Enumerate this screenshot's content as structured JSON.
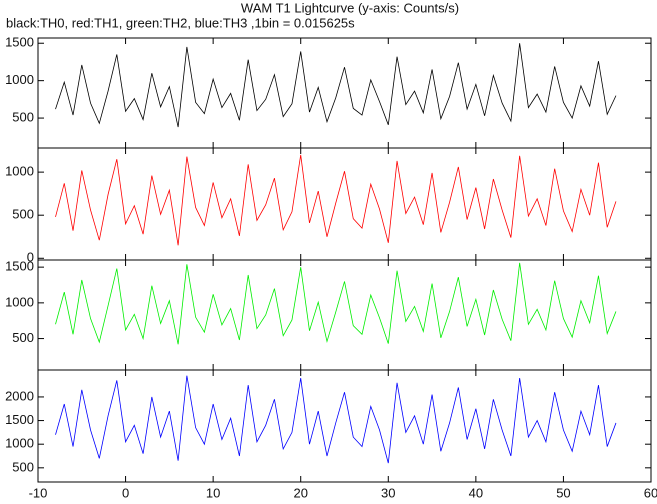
{
  "chart_data": [
    {
      "type": "line",
      "title": "WAM T1 Lightcurve (y-axis: Counts/s)",
      "subtitle": "black:TH0, red:TH1, green:TH2, blue:TH3 ,1bin = 0.015625s",
      "color": "#000000",
      "ylim": [
        100,
        1570
      ],
      "yticks": [
        500,
        1000,
        1500
      ],
      "x": [
        -8,
        -7,
        -6,
        -5,
        -4,
        -3,
        -2,
        -1,
        0,
        1,
        2,
        3,
        4,
        5,
        6,
        7,
        8,
        9,
        10,
        11,
        12,
        13,
        14,
        15,
        16,
        17,
        18,
        19,
        20,
        21,
        22,
        23,
        24,
        25,
        26,
        27,
        28,
        29,
        30,
        31,
        32,
        33,
        34,
        35,
        36,
        37,
        38,
        39,
        40,
        41,
        42,
        43,
        44,
        45,
        46,
        47,
        48,
        49,
        50,
        51,
        52,
        53,
        54,
        55,
        56
      ],
      "values": [
        620,
        980,
        540,
        1210,
        700,
        430,
        860,
        1350,
        590,
        760,
        480,
        1100,
        650,
        920,
        380,
        1450,
        710,
        560,
        1020,
        640,
        830,
        470,
        1280,
        600,
        750,
        1080,
        520,
        690,
        1390,
        580,
        910,
        450,
        770,
        1180,
        630,
        540,
        1010,
        720,
        410,
        1320,
        680,
        860,
        570,
        1150,
        490,
        790,
        1240,
        620,
        950,
        530,
        1070,
        700,
        460,
        1500,
        640,
        820,
        580,
        1190,
        710,
        500,
        930,
        660,
        1260,
        550,
        800
      ]
    },
    {
      "type": "line",
      "color": "#ff0000",
      "ylim": [
        -20,
        1280
      ],
      "yticks": [
        0,
        500,
        1000
      ],
      "x": [
        -8,
        -7,
        -6,
        -5,
        -4,
        -3,
        -2,
        -1,
        0,
        1,
        2,
        3,
        4,
        5,
        6,
        7,
        8,
        9,
        10,
        11,
        12,
        13,
        14,
        15,
        16,
        17,
        18,
        19,
        20,
        21,
        22,
        23,
        24,
        25,
        26,
        27,
        28,
        29,
        30,
        31,
        32,
        33,
        34,
        35,
        36,
        37,
        38,
        39,
        40,
        41,
        42,
        43,
        44,
        45,
        46,
        47,
        48,
        49,
        50,
        51,
        52,
        53,
        54,
        55,
        56
      ],
      "values": [
        480,
        870,
        320,
        1020,
        560,
        210,
        740,
        1150,
        400,
        610,
        280,
        960,
        510,
        790,
        150,
        1180,
        590,
        380,
        880,
        470,
        690,
        260,
        1090,
        440,
        620,
        930,
        330,
        540,
        1200,
        410,
        780,
        250,
        640,
        1010,
        460,
        350,
        860,
        570,
        180,
        1130,
        520,
        710,
        390,
        990,
        300,
        650,
        1060,
        450,
        820,
        340,
        920,
        560,
        240,
        1190,
        490,
        690,
        380,
        1040,
        550,
        310,
        800,
        500,
        1110,
        360,
        660
      ]
    },
    {
      "type": "line",
      "color": "#00ee00",
      "ylim": [
        60,
        1600
      ],
      "yticks": [
        500,
        1000,
        1500
      ],
      "x": [
        -8,
        -7,
        -6,
        -5,
        -4,
        -3,
        -2,
        -1,
        0,
        1,
        2,
        3,
        4,
        5,
        6,
        7,
        8,
        9,
        10,
        11,
        12,
        13,
        14,
        15,
        16,
        17,
        18,
        19,
        20,
        21,
        22,
        23,
        24,
        25,
        26,
        27,
        28,
        29,
        30,
        31,
        32,
        33,
        34,
        35,
        36,
        37,
        38,
        39,
        40,
        41,
        42,
        43,
        44,
        45,
        46,
        47,
        48,
        49,
        50,
        51,
        52,
        53,
        54,
        55,
        56
      ],
      "values": [
        700,
        1150,
        560,
        1320,
        780,
        450,
        960,
        1480,
        620,
        840,
        500,
        1240,
        710,
        1030,
        420,
        1540,
        800,
        590,
        1120,
        690,
        920,
        480,
        1390,
        640,
        830,
        1200,
        540,
        760,
        1500,
        610,
        1010,
        460,
        870,
        1300,
        680,
        560,
        1110,
        790,
        430,
        1450,
        740,
        950,
        600,
        1270,
        510,
        880,
        1360,
        670,
        1050,
        550,
        1180,
        770,
        470,
        1560,
        700,
        910,
        620,
        1310,
        780,
        520,
        1030,
        720,
        1380,
        570,
        880
      ]
    },
    {
      "type": "line",
      "color": "#0000ff",
      "ylim": [
        200,
        2570
      ],
      "yticks": [
        500,
        1000,
        1500,
        2000
      ],
      "xlim": [
        -10,
        60
      ],
      "xticks": [
        -10,
        0,
        10,
        20,
        30,
        40,
        50,
        60
      ],
      "x": [
        -8,
        -7,
        -6,
        -5,
        -4,
        -3,
        -2,
        -1,
        0,
        1,
        2,
        3,
        4,
        5,
        6,
        7,
        8,
        9,
        10,
        11,
        12,
        13,
        14,
        15,
        16,
        17,
        18,
        19,
        20,
        21,
        22,
        23,
        24,
        25,
        26,
        27,
        28,
        29,
        30,
        31,
        32,
        33,
        34,
        35,
        36,
        37,
        38,
        39,
        40,
        41,
        42,
        43,
        44,
        45,
        46,
        47,
        48,
        49,
        50,
        51,
        52,
        53,
        54,
        55,
        56
      ],
      "values": [
        1200,
        1850,
        950,
        2150,
        1300,
        700,
        1600,
        2350,
        1050,
        1400,
        800,
        2000,
        1150,
        1700,
        650,
        2450,
        1350,
        1000,
        1850,
        1100,
        1550,
        750,
        2250,
        1050,
        1400,
        1950,
        900,
        1250,
        2400,
        1000,
        1700,
        750,
        1450,
        2100,
        1150,
        950,
        1800,
        1300,
        600,
        2300,
        1250,
        1600,
        1000,
        2050,
        850,
        1450,
        2200,
        1100,
        1750,
        900,
        1950,
        1300,
        750,
        2400,
        1150,
        1500,
        1050,
        2100,
        1300,
        850,
        1700,
        1200,
        2250,
        950,
        1450
      ]
    }
  ]
}
